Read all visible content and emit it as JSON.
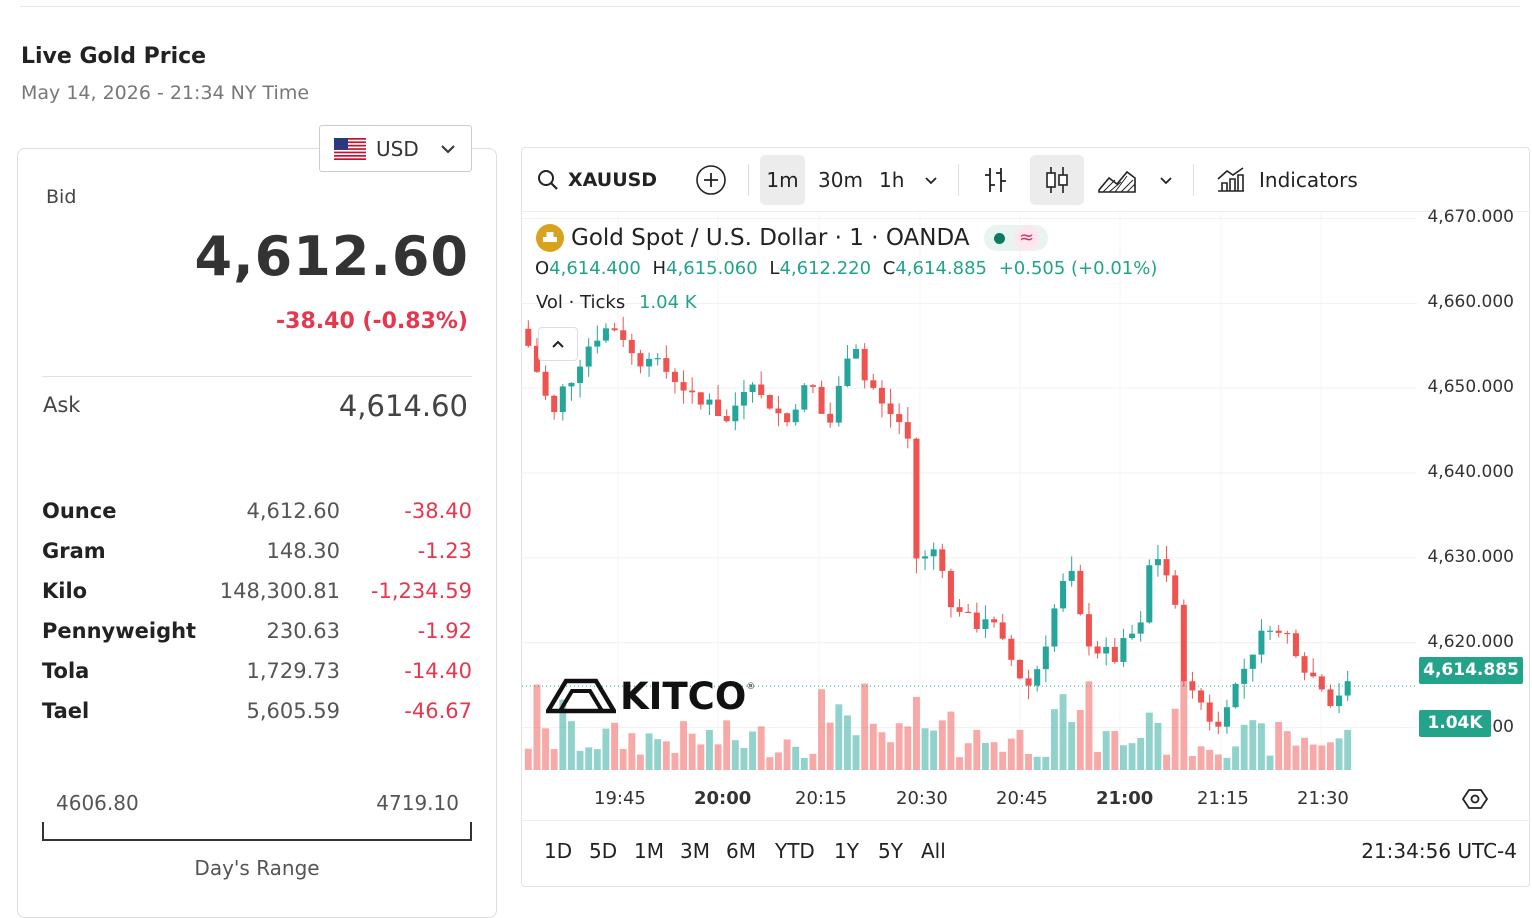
{
  "header": {
    "title": "Live Gold Price",
    "subtitle": "May 14, 2026 - 21:34 NY Time"
  },
  "currency": {
    "selected": "USD",
    "flag_icon": "us-flag-icon"
  },
  "quote": {
    "bid_label": "Bid",
    "bid": "4,612.60",
    "change": "-38.40 (-0.83%)",
    "ask_label": "Ask",
    "ask": "4,614.60"
  },
  "units": [
    {
      "name": "Ounce",
      "value": "4,612.60",
      "change": "-38.40"
    },
    {
      "name": "Gram",
      "value": "148.30",
      "change": "-1.23"
    },
    {
      "name": "Kilo",
      "value": "148,300.81",
      "change": "-1,234.59"
    },
    {
      "name": "Pennyweight",
      "value": "230.63",
      "change": "-1.92"
    },
    {
      "name": "Tola",
      "value": "1,729.73",
      "change": "-14.40"
    },
    {
      "name": "Tael",
      "value": "5,605.59",
      "change": "-46.67"
    }
  ],
  "day_range": {
    "low": "4606.80",
    "high": "4719.10",
    "label": "Day's Range"
  },
  "toolbar": {
    "symbol": "XAUUSD",
    "intervals": [
      "1m",
      "30m",
      "1h"
    ],
    "active_interval": "1m",
    "indicators_label": "Indicators"
  },
  "legend": {
    "title": "Gold Spot / U.S. Dollar · 1 · OANDA",
    "open_label": "O",
    "open": "4,614.400",
    "high_label": "H",
    "high": "4,615.060",
    "low_label": "L",
    "low": "4,612.220",
    "close_label": "C",
    "close": "4,614.885",
    "change": "+0.505 (+0.01%)",
    "vol_label": "Vol · Ticks",
    "vol_value": "1.04 K"
  },
  "watermark": "KITCO",
  "tags": {
    "price": "4,614.885",
    "volume": "1.04K"
  },
  "bottom": {
    "ranges": [
      "1D",
      "5D",
      "1M",
      "3M",
      "6M",
      "YTD",
      "1Y",
      "5Y",
      "All"
    ],
    "clock": "21:34:56 UTC-4"
  },
  "colors": {
    "up": "#26a69a",
    "down": "#ef5350",
    "accent_green": "#22a38a",
    "negative_text": "#e5374e"
  },
  "chart_data": {
    "type": "candlestick",
    "symbol": "XAUUSD",
    "interval": "1m",
    "y_ticks": [
      "4,610.000",
      "4,620.000",
      "4,630.000",
      "4,640.000",
      "4,650.000",
      "4,660.000",
      "4,670.000"
    ],
    "ylim": [
      4605,
      4671
    ],
    "x_ticks": [
      "19:45",
      "20:00",
      "20:15",
      "20:30",
      "20:45",
      "21:00",
      "21:15",
      "21:30"
    ],
    "x_ticks_bold": [
      "20:00",
      "21:00"
    ],
    "close_series": [
      4655,
      4652,
      4649,
      4647,
      4650,
      4651,
      4653,
      4655,
      4656,
      4657,
      4657,
      4656,
      4654,
      4653,
      4654,
      4653,
      4652,
      4651,
      4650,
      4649,
      4648,
      4649,
      4647,
      4646,
      4648,
      4650,
      4651,
      4649,
      4648,
      4647,
      4646,
      4648,
      4650,
      4650,
      4647,
      4646,
      4650,
      4654,
      4655,
      4651,
      4650,
      4648,
      4647,
      4646,
      4644,
      4630,
      4630,
      4631,
      4629,
      4624,
      4624,
      4623,
      4622,
      4623,
      4622,
      4620,
      4618,
      4616,
      4615,
      4617,
      4620,
      4624,
      4627,
      4628,
      4623,
      4620,
      4619,
      4619,
      4618,
      4620,
      4621,
      4622,
      4629,
      4630,
      4628,
      4624,
      4616,
      4614,
      4613,
      4611,
      4610,
      4613,
      4615,
      4617,
      4619,
      4621,
      4622,
      4621,
      4621,
      4619,
      4617,
      4616,
      4615,
      4613,
      4614,
      4615
    ]
  }
}
